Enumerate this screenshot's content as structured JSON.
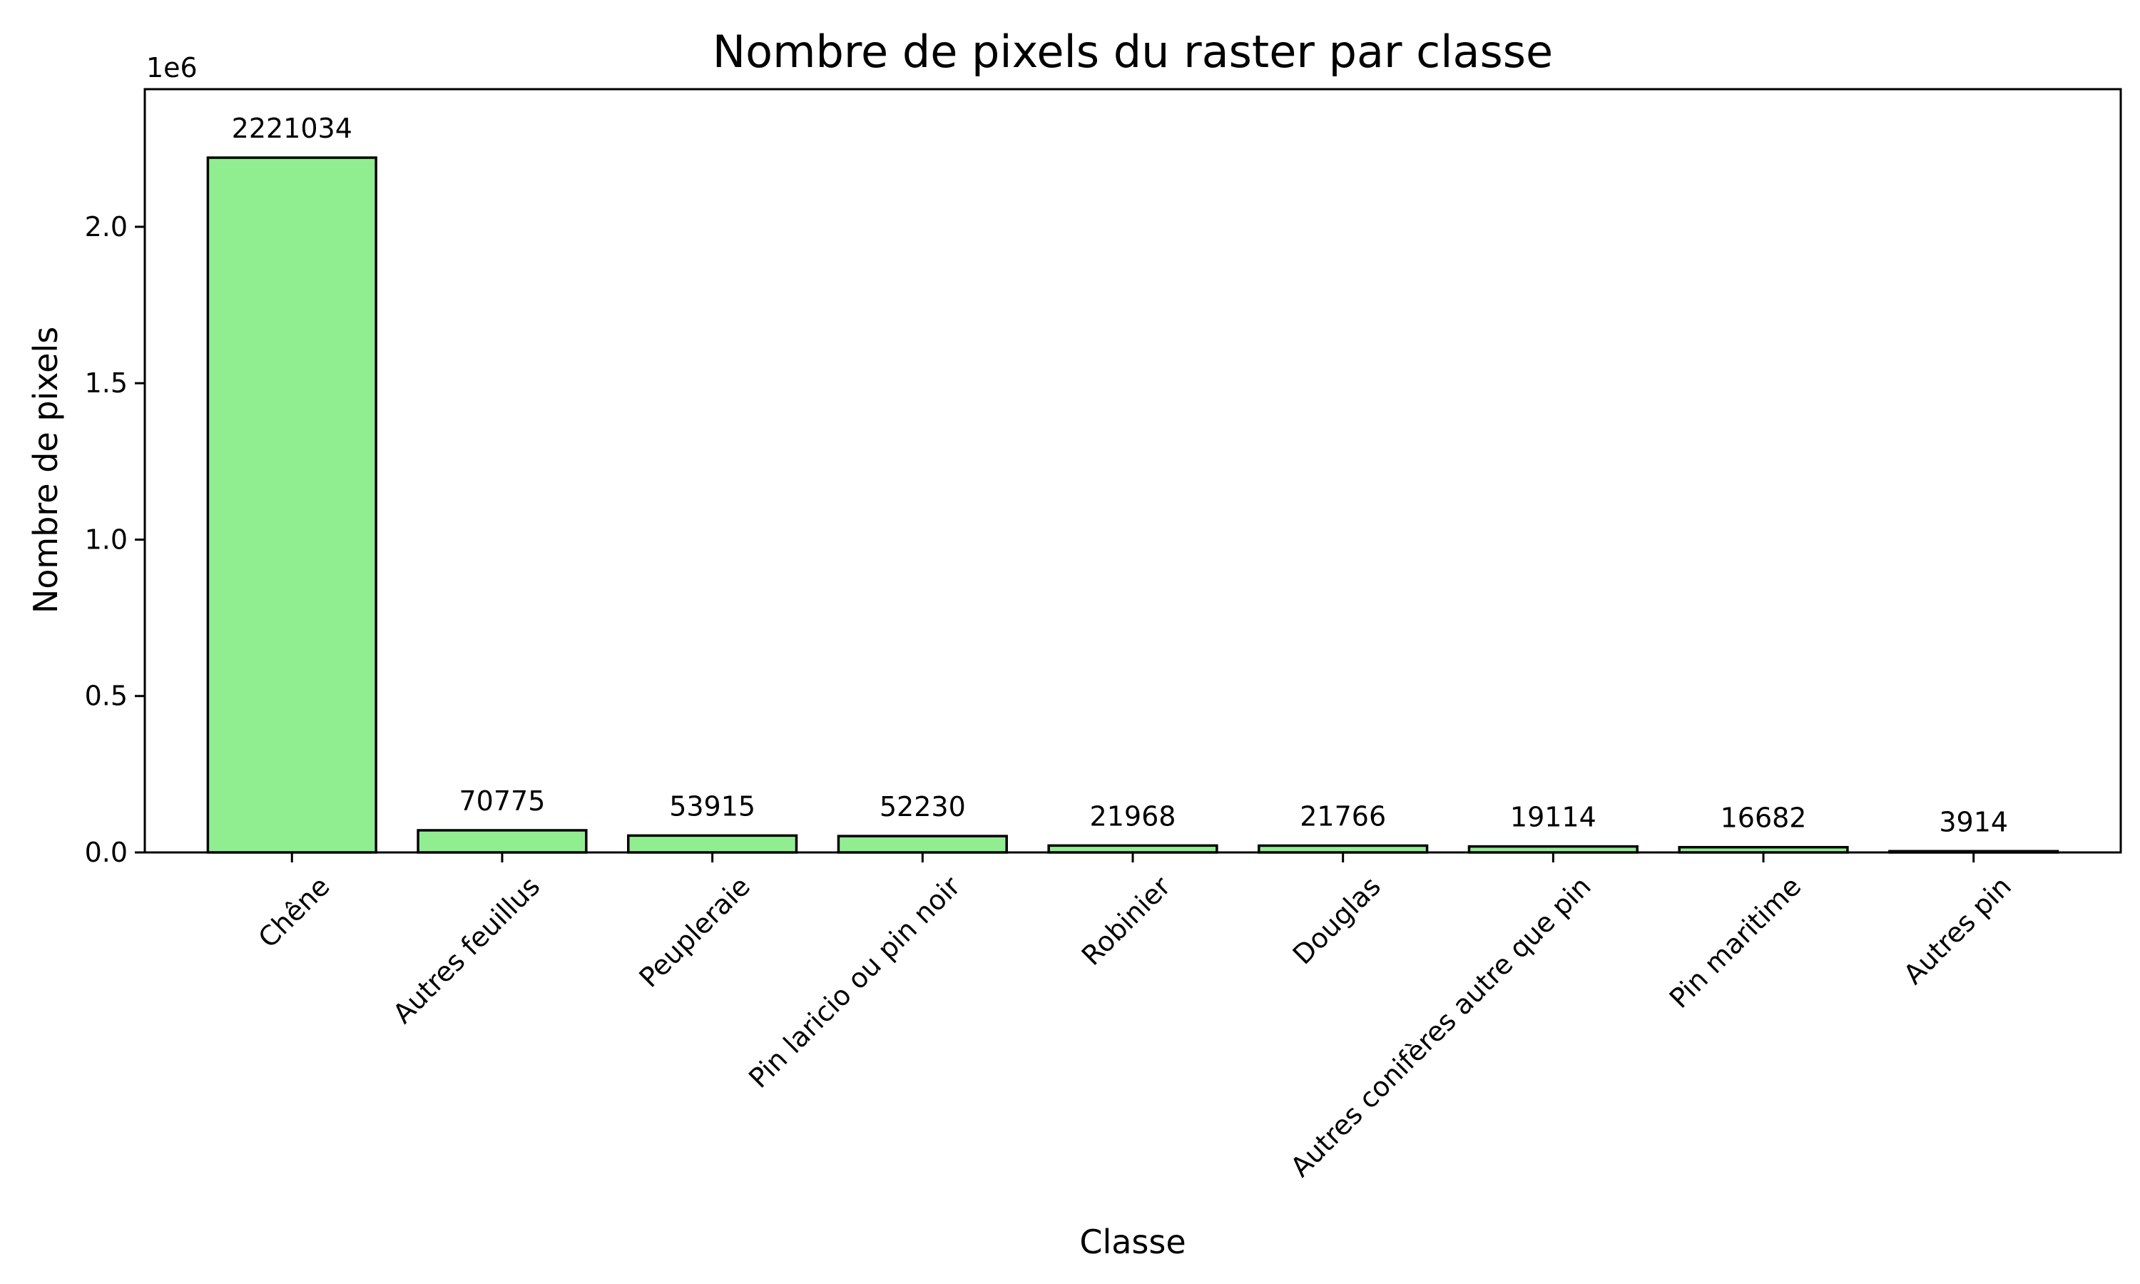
{
  "chart_data": {
    "type": "bar",
    "title": "Nombre de pixels du raster par classe",
    "xlabel": "Classe",
    "ylabel": "Nombre de pixels",
    "y_offset_label": "1e6",
    "categories": [
      "Chêne",
      "Autres feuillus",
      "Peupleraie",
      "Pin laricio ou pin noir",
      "Robinier",
      "Douglas",
      "Autres conifères autre que pin",
      "Pin maritime",
      "Autres pin"
    ],
    "values": [
      2221034,
      70775,
      53915,
      52230,
      21968,
      21766,
      19114,
      16682,
      3914
    ],
    "data_labels": [
      "2221034",
      "70775",
      "53915",
      "52230",
      "21968",
      "21766",
      "19114",
      "16682",
      "3914"
    ],
    "ylim": [
      0,
      2440000
    ],
    "yticks": [
      0,
      500000,
      1000000,
      1500000,
      2000000
    ],
    "ytick_labels": [
      "0.0",
      "0.5",
      "1.0",
      "1.5",
      "2.0"
    ],
    "bar_color": "#90ee90",
    "edge_color": "#000000",
    "grid": false,
    "legend": "none"
  }
}
